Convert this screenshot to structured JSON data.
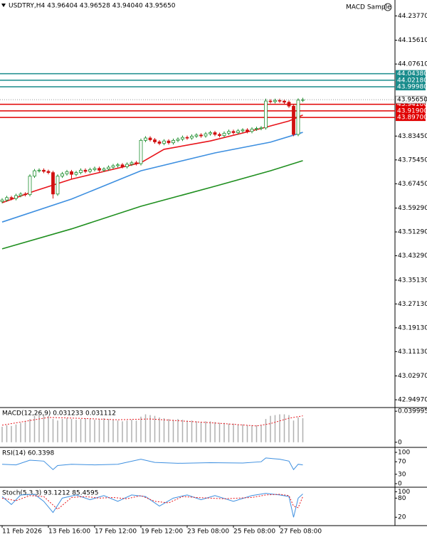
{
  "chart_data": [
    {
      "type": "candlestick",
      "title": "USDTRY,H4  43.96404 43.96528 43.94040 43.95650",
      "expert": "MACD Sample",
      "bull_color": "#1f8f2f",
      "bear_color": "#d01010",
      "ylim": [
        42.926,
        44.291
      ],
      "yticks": [
        {
          "value": 44.2377,
          "label": "44.23770"
        },
        {
          "value": 44.1561,
          "label": "44.15610"
        },
        {
          "value": 44.0761,
          "label": "44.07610"
        },
        {
          "value": 43.8345,
          "label": "43.83450"
        },
        {
          "value": 43.7545,
          "label": "43.75450"
        },
        {
          "value": 43.6745,
          "label": "43.67450"
        },
        {
          "value": 43.5929,
          "label": "43.59290"
        },
        {
          "value": 43.5129,
          "label": "43.51290"
        },
        {
          "value": 43.4329,
          "label": "43.43290"
        },
        {
          "value": 43.3513,
          "label": "43.35130"
        },
        {
          "value": 43.2713,
          "label": "43.27130"
        },
        {
          "value": 43.1913,
          "label": "43.19130"
        },
        {
          "value": 43.1113,
          "label": "43.11130"
        },
        {
          "value": 43.0297,
          "label": "43.02970"
        },
        {
          "value": 42.9497,
          "label": "42.94970"
        }
      ],
      "xticks": [
        {
          "value": 0,
          "label": "11 Feb 2026"
        },
        {
          "value": 10,
          "label": "13 Feb 16:00"
        },
        {
          "value": 20,
          "label": "17 Feb 12:00"
        },
        {
          "value": 30,
          "label": "19 Feb 12:00"
        },
        {
          "value": 40,
          "label": "23 Feb 08:00"
        },
        {
          "value": 50,
          "label": "25 Feb 08:00"
        },
        {
          "value": 60,
          "label": "27 Feb 08:00"
        }
      ],
      "open": [
        43.615,
        43.62,
        43.628,
        43.625,
        43.635,
        43.64,
        43.638,
        43.7,
        43.718,
        43.72,
        43.716,
        43.712,
        43.64,
        43.7,
        43.708,
        43.715,
        43.706,
        43.712,
        43.72,
        43.716,
        43.722,
        43.726,
        43.72,
        43.724,
        43.73,
        43.735,
        43.738,
        43.732,
        43.74,
        43.745,
        43.742,
        43.82,
        43.828,
        43.822,
        43.815,
        43.81,
        43.818,
        43.812,
        43.82,
        43.824,
        43.83,
        43.828,
        43.834,
        43.838,
        43.835,
        43.842,
        43.846,
        43.84,
        43.836,
        43.844,
        43.85,
        43.846,
        43.852,
        43.855,
        43.85,
        43.858,
        43.86,
        43.862,
        43.952,
        43.95,
        43.954,
        43.952,
        43.948,
        43.935,
        43.84,
        43.955
      ],
      "high": [
        43.626,
        43.634,
        43.634,
        43.641,
        43.646,
        43.646,
        43.706,
        43.724,
        43.726,
        43.726,
        43.722,
        43.718,
        43.706,
        43.714,
        43.721,
        43.721,
        43.718,
        43.726,
        43.726,
        43.728,
        43.732,
        43.732,
        43.73,
        43.736,
        43.741,
        43.744,
        43.744,
        43.746,
        43.751,
        43.751,
        43.826,
        43.834,
        43.834,
        43.828,
        43.821,
        43.824,
        43.824,
        43.826,
        43.83,
        43.836,
        43.836,
        43.84,
        43.844,
        43.844,
        43.848,
        43.852,
        43.852,
        43.846,
        43.85,
        43.856,
        43.856,
        43.858,
        43.861,
        43.861,
        43.864,
        43.866,
        43.868,
        43.96,
        43.958,
        43.96,
        43.96,
        43.958,
        43.954,
        43.941,
        43.961,
        43.963
      ],
      "low": [
        43.609,
        43.614,
        43.619,
        43.619,
        43.629,
        43.632,
        43.632,
        43.694,
        43.712,
        43.71,
        43.706,
        43.625,
        43.634,
        43.694,
        43.702,
        43.69,
        43.7,
        43.706,
        43.71,
        43.71,
        43.716,
        43.714,
        43.714,
        43.718,
        43.724,
        43.729,
        43.726,
        43.726,
        43.734,
        43.736,
        43.736,
        43.814,
        43.816,
        43.809,
        43.804,
        43.804,
        43.806,
        43.806,
        43.814,
        43.818,
        43.822,
        43.822,
        43.828,
        43.829,
        43.829,
        43.836,
        43.834,
        43.83,
        43.83,
        43.838,
        43.84,
        43.84,
        43.846,
        43.844,
        43.844,
        43.852,
        43.854,
        43.856,
        43.944,
        43.944,
        43.946,
        43.942,
        43.929,
        43.834,
        43.834,
        43.949
      ],
      "close": [
        43.62,
        43.628,
        43.625,
        43.635,
        43.64,
        43.638,
        43.7,
        43.718,
        43.72,
        43.716,
        43.712,
        43.64,
        43.7,
        43.708,
        43.715,
        43.706,
        43.712,
        43.72,
        43.716,
        43.722,
        43.726,
        43.72,
        43.724,
        43.73,
        43.735,
        43.738,
        43.732,
        43.74,
        43.745,
        43.742,
        43.82,
        43.828,
        43.822,
        43.815,
        43.81,
        43.818,
        43.812,
        43.82,
        43.824,
        43.83,
        43.828,
        43.834,
        43.838,
        43.835,
        43.842,
        43.846,
        43.84,
        43.836,
        43.844,
        43.85,
        43.846,
        43.852,
        43.855,
        43.85,
        43.858,
        43.86,
        43.862,
        43.952,
        43.95,
        43.954,
        43.952,
        43.948,
        43.935,
        43.84,
        43.955,
        43.9565
      ],
      "series": [
        {
          "color": "#e8141b",
          "x": [
            0,
            7,
            15,
            30,
            35,
            45,
            56,
            62,
            65
          ],
          "values": [
            43.611,
            43.65,
            43.69,
            43.745,
            43.79,
            43.818,
            43.86,
            43.885,
            43.905
          ]
        },
        {
          "color": "#3d8fe0",
          "x": [
            0,
            15,
            30,
            46,
            58,
            65
          ],
          "values": [
            43.546,
            43.623,
            43.718,
            43.778,
            43.814,
            43.847
          ]
        },
        {
          "color": "#1f8f1f",
          "x": [
            0,
            15,
            30,
            46,
            58,
            65
          ],
          "values": [
            43.456,
            43.523,
            43.599,
            43.666,
            43.718,
            43.752
          ]
        }
      ],
      "levels": [
        {
          "value": 44.0438,
          "label": "44.04380",
          "color": "#198c8c"
        },
        {
          "value": 44.0218,
          "label": "44.02180",
          "color": "#198c8c"
        },
        {
          "value": 43.9998,
          "label": "43.99980",
          "color": "#198c8c"
        },
        {
          "value": 43.941,
          "label": "43.94100",
          "color": "#e00000"
        },
        {
          "value": 43.919,
          "label": "43.91900",
          "color": "#e00000"
        },
        {
          "value": 43.897,
          "label": "43.89700",
          "color": "#e00000"
        }
      ],
      "last_price": {
        "value": 43.9565,
        "label": "43.95650"
      }
    },
    {
      "type": "bar",
      "title": "MACD(12,26,9) 0.031233 0.031112",
      "color": "#b0b0b0",
      "ylim": [
        -0.0057,
        0.0438
      ],
      "yticks": [
        0.039995,
        0
      ],
      "values": [
        0.02,
        0.022,
        0.021,
        0.023,
        0.025,
        0.027,
        0.03,
        0.034,
        0.036,
        0.035,
        0.034,
        0.03,
        0.028,
        0.03,
        0.031,
        0.03,
        0.029,
        0.03,
        0.031,
        0.03,
        0.029,
        0.03,
        0.031,
        0.03,
        0.029,
        0.028,
        0.027,
        0.028,
        0.029,
        0.028,
        0.033,
        0.036,
        0.035,
        0.034,
        0.032,
        0.031,
        0.03,
        0.029,
        0.03,
        0.029,
        0.028,
        0.028,
        0.027,
        0.026,
        0.027,
        0.027,
        0.026,
        0.025,
        0.025,
        0.024,
        0.024,
        0.023,
        0.023,
        0.022,
        0.022,
        0.022,
        0.022,
        0.03,
        0.034,
        0.035,
        0.036,
        0.036,
        0.035,
        0.028,
        0.032,
        0.031
      ],
      "series": [
        {
          "color": "#e8141b",
          "dashed": true,
          "x": [
            0,
            4,
            10,
            16,
            25,
            32,
            40,
            48,
            55,
            58,
            62,
            65
          ],
          "values": [
            0.022,
            0.026,
            0.032,
            0.031,
            0.029,
            0.03,
            0.027,
            0.024,
            0.021,
            0.024,
            0.031,
            0.034
          ]
        }
      ]
    },
    {
      "type": "line",
      "title": "RSI(14) 60.3398",
      "ylim": [
        -6.8,
        113.6
      ],
      "yticks": [
        100,
        70,
        30,
        0
      ],
      "series": [
        {
          "color": "#3d8fe0",
          "x": [
            0,
            3,
            6,
            9,
            11,
            12,
            15,
            20,
            25,
            30,
            33,
            38,
            45,
            52,
            56,
            57,
            60,
            62,
            63,
            64,
            65
          ],
          "values": [
            62,
            60,
            75,
            72,
            45,
            58,
            62,
            60,
            62,
            78,
            68,
            65,
            67,
            66,
            70,
            82,
            78,
            72,
            45,
            62,
            60
          ]
        }
      ]
    },
    {
      "type": "line",
      "title": "Stoch(5,3,3) 93.1212 85.4595",
      "ylim": [
        -4,
        112
      ],
      "yticks": [
        100,
        80,
        20
      ],
      "series": [
        {
          "color": "#3d8fe0",
          "x": [
            0,
            2,
            4,
            7,
            9,
            11,
            13,
            16,
            19,
            22,
            25,
            28,
            31,
            34,
            37,
            40,
            43,
            46,
            50,
            54,
            57,
            60,
            62,
            63,
            64,
            65
          ],
          "values": [
            85,
            60,
            90,
            92,
            70,
            35,
            80,
            90,
            75,
            88,
            70,
            90,
            85,
            55,
            80,
            90,
            75,
            88,
            70,
            88,
            95,
            90,
            85,
            20,
            80,
            93
          ]
        },
        {
          "color": "#e8141b",
          "dashed": true,
          "x": [
            0,
            3,
            6,
            9,
            12,
            15,
            18,
            21,
            24,
            27,
            30,
            33,
            36,
            39,
            42,
            45,
            48,
            51,
            54,
            57,
            60,
            62,
            63,
            64,
            65
          ],
          "values": [
            80,
            72,
            88,
            85,
            45,
            82,
            85,
            80,
            82,
            78,
            88,
            70,
            65,
            85,
            82,
            80,
            78,
            80,
            82,
            90,
            92,
            88,
            55,
            50,
            85
          ]
        }
      ]
    }
  ]
}
